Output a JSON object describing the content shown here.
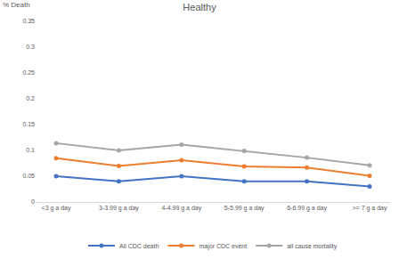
{
  "chart_data": {
    "type": "line",
    "title": "Healthy",
    "y_label": "% Death",
    "categories": [
      "<3 g a day",
      "3-3.99 g a day",
      "4-4.99 g a day",
      "5-5.99 g a day",
      "6-6.99 g a day",
      ">= 7 g a day"
    ],
    "series": [
      {
        "name": "All CDC death",
        "color": "#4472c4",
        "marker": "circle",
        "values": [
          0.05,
          0.04,
          0.05,
          0.04,
          0.04,
          0.03
        ]
      },
      {
        "name": "major CDC event",
        "color": "#ed7d31",
        "marker": "circle",
        "values": [
          0.085,
          0.07,
          0.081,
          0.069,
          0.067,
          0.051
        ]
      },
      {
        "name": "all cause mortality",
        "color": "#a5a5a5",
        "marker": "circle",
        "values": [
          0.114,
          0.1,
          0.111,
          0.099,
          0.086,
          0.071
        ]
      }
    ],
    "ylim": [
      0,
      0.35
    ],
    "yticks": [
      0,
      0.05,
      0.1,
      0.15,
      0.2,
      0.25,
      0.3,
      0.35
    ],
    "grid": false,
    "legend": "bottom"
  }
}
